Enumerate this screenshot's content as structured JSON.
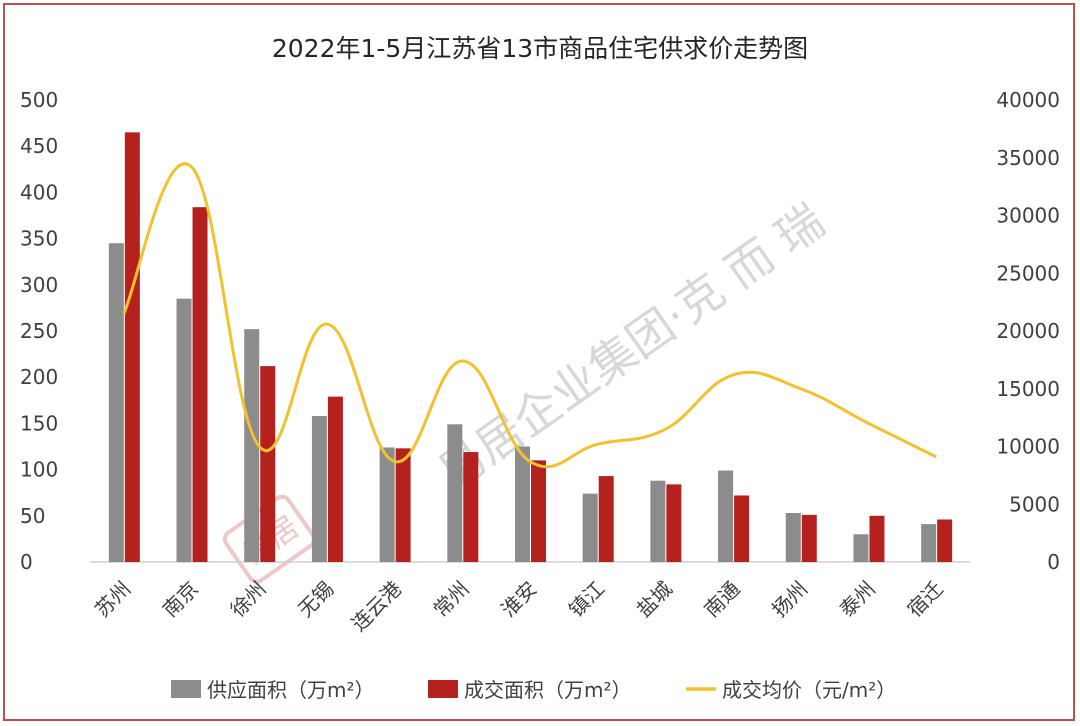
{
  "chart_data": {
    "type": "bar+line",
    "title": "2022年1-5月江苏省13市商品住宅供求价走势图",
    "categories": [
      "苏州",
      "南京",
      "徐州",
      "无锡",
      "连云港",
      "常州",
      "淮安",
      "镇江",
      "盐城",
      "南通",
      "扬州",
      "泰州",
      "宿迁"
    ],
    "series": [
      {
        "name": "供应面积（万m²）",
        "type": "bar",
        "axis": "left",
        "color": "#8c8c8c",
        "values": [
          345,
          285,
          252,
          158,
          124,
          149,
          125,
          74,
          88,
          99,
          53,
          30,
          41
        ]
      },
      {
        "name": "成交面积（万m²）",
        "type": "bar",
        "axis": "left",
        "color": "#b5221e",
        "values": [
          465,
          384,
          212,
          179,
          123,
          119,
          110,
          93,
          84,
          72,
          51,
          50,
          46
        ]
      },
      {
        "name": "成交均价（元/m²）",
        "type": "line",
        "axis": "right",
        "color": "#f2c12e",
        "values": [
          21500,
          34200,
          10000,
          20600,
          8700,
          17400,
          8700,
          10200,
          11500,
          16200,
          15000,
          12000,
          9100
        ]
      }
    ],
    "y_left": {
      "min": 0,
      "max": 500,
      "ticks": [
        "0",
        "50",
        "100",
        "150",
        "200",
        "250",
        "300",
        "350",
        "400",
        "450",
        "500"
      ]
    },
    "y_right": {
      "min": 0,
      "max": 40000,
      "ticks": [
        "0",
        "5000",
        "10000",
        "15000",
        "20000",
        "25000",
        "30000",
        "35000",
        "40000"
      ]
    },
    "grid": false,
    "legend_position": "bottom",
    "watermark": "易居企业集团·克 而 瑞",
    "watermark_seal": "易居"
  }
}
